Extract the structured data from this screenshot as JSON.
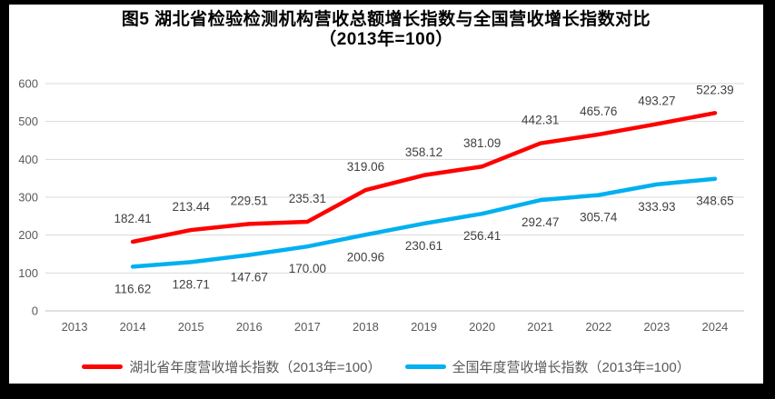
{
  "chart_data": {
    "type": "line",
    "title": "图5 湖北省检验检测机构营收总额增长指数与全国营收增长指数对比",
    "subtitle": "（2013年=100）",
    "categories": [
      "2013",
      "2014",
      "2015",
      "2016",
      "2017",
      "2018",
      "2019",
      "2020",
      "2021",
      "2022",
      "2023",
      "2024"
    ],
    "series": [
      {
        "key": "hubei",
        "name": "湖北省年度营收增长指数（2013年=100）",
        "color": "#FF0000",
        "label_position": "above",
        "values": [
          null,
          182.41,
          213.44,
          229.51,
          235.31,
          319.06,
          358.12,
          381.09,
          442.31,
          465.76,
          493.27,
          522.39
        ]
      },
      {
        "key": "national",
        "name": "全国年度营收增长指数（2013年=100）",
        "color": "#00B0F0",
        "label_position": "below",
        "values": [
          null,
          116.62,
          128.71,
          147.67,
          170.0,
          200.96,
          230.61,
          256.41,
          292.47,
          305.74,
          333.93,
          348.65
        ]
      }
    ],
    "y_axis": {
      "min": 0,
      "max": 600,
      "step": 100
    },
    "grid": true,
    "legend_position": "bottom",
    "colors": {
      "gridline": "#D9D9D9",
      "axis_line": "#BFBFBF",
      "tick_label": "#595959",
      "data_label": "#404040",
      "frame": "#000000"
    }
  }
}
